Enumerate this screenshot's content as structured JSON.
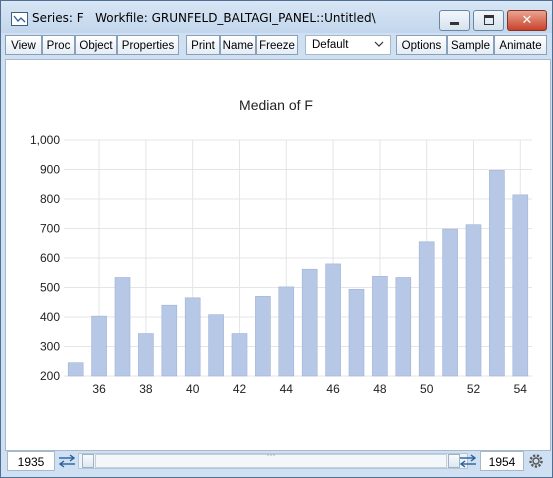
{
  "window": {
    "title": "Series: F   Workfile: GRUNFELD_BALTAGI_PANEL::Untitled\\",
    "close_glyph": "✕"
  },
  "toolbar": {
    "view": "View",
    "proc": "Proc",
    "object": "Object",
    "properties": "Properties",
    "print": "Print",
    "name": "Name",
    "freeze": "Freeze",
    "display_mode": "Default",
    "options": "Options",
    "sample": "Sample",
    "animate": "Animate"
  },
  "statusbar": {
    "start_year": "1935",
    "end_year": "1954",
    "thumb_grip": "⋯"
  },
  "colors": {
    "bar": "#b7c8e6",
    "grid": "#e5e5e5",
    "title_close": "#c8422c"
  },
  "chart_data": {
    "type": "bar",
    "title": "Median of F",
    "categories": [
      "1935",
      "1936",
      "1937",
      "1938",
      "1939",
      "1940",
      "1941",
      "1942",
      "1943",
      "1944",
      "1945",
      "1946",
      "1947",
      "1948",
      "1949",
      "1950",
      "1951",
      "1952",
      "1953",
      "1954"
    ],
    "x_tick_labels": [
      "36",
      "38",
      "40",
      "42",
      "44",
      "46",
      "48",
      "50",
      "52",
      "54"
    ],
    "values": [
      245,
      403,
      534,
      344,
      440,
      465,
      408,
      344,
      470,
      502,
      562,
      580,
      494,
      538,
      534,
      655,
      698,
      713,
      897,
      814
    ],
    "ylim": [
      200,
      1000
    ],
    "y_ticks": [
      "200",
      "300",
      "400",
      "500",
      "600",
      "700",
      "800",
      "900",
      "1,000"
    ],
    "xlabel": "",
    "ylabel": "",
    "grid": true
  }
}
